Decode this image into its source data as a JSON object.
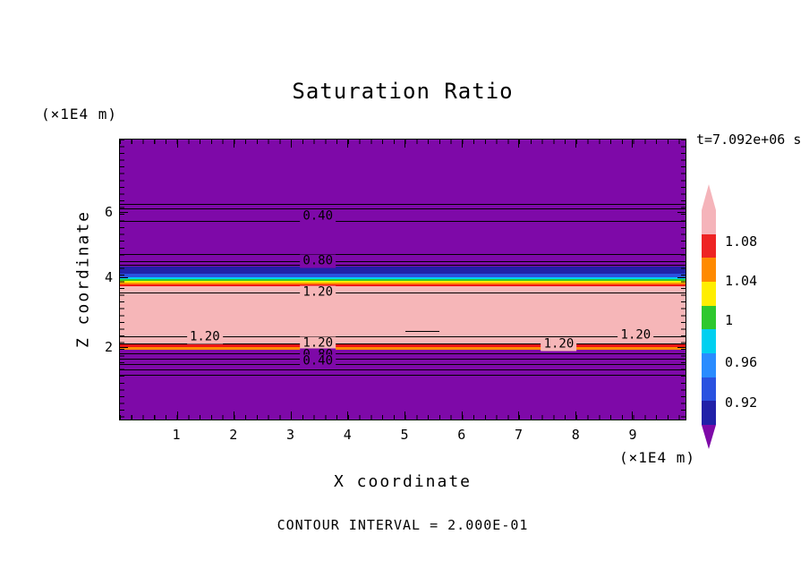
{
  "header": {
    "title": "Saturation Ratio",
    "time_label": "t=7.092e+06 s"
  },
  "axes": {
    "xlabel": "X coordinate",
    "ylabel": "Z coordinate",
    "x_unit": "(×1E4 m)",
    "y_unit": "(×1E4 m)"
  },
  "footer": {
    "contour_note": "CONTOUR INTERVAL = 2.000E-01"
  },
  "chart_data": {
    "type": "heatmap",
    "subtype": "filled-contour-plot",
    "title": "Saturation Ratio",
    "xlabel": "X coordinate",
    "ylabel": "Z coordinate",
    "x_axis_unit": "(×1E4 m)",
    "y_axis_unit": "(×1E4 m)",
    "time": "t=7.092e+06 s",
    "contour_interval": "2.000E-01",
    "x_range": [
      0,
      9.95
    ],
    "y_range": [
      -0.2,
      8.2
    ],
    "grid": false,
    "x_ticks": [
      {
        "value": "1",
        "f": 0.1009
      },
      {
        "value": "2",
        "f": 0.2015
      },
      {
        "value": "3",
        "f": 0.3021
      },
      {
        "value": "4",
        "f": 0.4026
      },
      {
        "value": "5",
        "f": 0.5032
      },
      {
        "value": "6",
        "f": 0.6037
      },
      {
        "value": "7",
        "f": 0.7043
      },
      {
        "value": "8",
        "f": 0.8048
      },
      {
        "value": "9",
        "f": 0.9054
      }
    ],
    "y_ticks": [
      {
        "value": "6",
        "f": 0.2603
      },
      {
        "value": "4",
        "f": 0.4921
      },
      {
        "value": "2",
        "f": 0.7397
      }
    ],
    "colors": {
      "purple": "#7e09a8",
      "navy": "#2121a8",
      "blue": "#2a52e0",
      "cyan": "#00d0f0",
      "green": "#2ec82e",
      "yellow": "#ffee00",
      "orange": "#ff8c00",
      "red": "#f01414",
      "pink": "#f6b6b8"
    },
    "bands": [
      {
        "top": 0.0,
        "bottom": 0.454,
        "color": "#7e09a8",
        "value": "< 0.92"
      },
      {
        "top": 0.454,
        "bottom": 0.479,
        "color": "#2121a8",
        "value": "0.92"
      },
      {
        "top": 0.479,
        "bottom": 0.492,
        "color": "#2a52e0",
        "value": "0.94"
      },
      {
        "top": 0.492,
        "bottom": 0.4985,
        "color": "#00d0f0",
        "value": "0.96"
      },
      {
        "top": 0.4985,
        "bottom": 0.505,
        "color": "#2ec82e",
        "value": "1.00"
      },
      {
        "top": 0.505,
        "bottom": 0.511,
        "color": "#ffee00",
        "value": "1.04"
      },
      {
        "top": 0.511,
        "bottom": 0.5175,
        "color": "#ff8c00",
        "value": "1.06"
      },
      {
        "top": 0.5175,
        "bottom": 0.524,
        "color": "#f01414",
        "value": "1.08"
      },
      {
        "top": 0.517,
        "bottom": 0.54,
        "color": "#f01414",
        "x0": 0.37,
        "x1": 0.47,
        "value": "1.08"
      },
      {
        "top": 0.524,
        "bottom": 0.733,
        "color": "#f6b6b8",
        "value": "> 1.08 (≈1.2)"
      },
      {
        "top": 0.733,
        "bottom": 0.742,
        "color": "#f01414",
        "value": "1.08"
      },
      {
        "top": 0.742,
        "bottom": 0.752,
        "color": "#ff8c00",
        "value": "1.04"
      },
      {
        "top": 0.752,
        "bottom": 1.0,
        "color": "#7e09a8",
        "value": "< 0.92"
      }
    ],
    "contour_lines": [
      {
        "y": 0.2286,
        "x0": 0,
        "x1": 1
      },
      {
        "y": 0.2476,
        "x0": 0,
        "x1": 1
      },
      {
        "y": 0.2921,
        "x0": 0,
        "x1": 1,
        "level": "0.40"
      },
      {
        "y": 0.4095,
        "x0": 0,
        "x1": 1
      },
      {
        "y": 0.4349,
        "x0": 0,
        "x1": 1,
        "level": "0.80"
      },
      {
        "y": 0.448,
        "x0": 0,
        "x1": 1
      },
      {
        "y": 0.546,
        "x0": 0,
        "x1": 1,
        "level": "1.20"
      },
      {
        "y": 0.6825,
        "x0": 0.505,
        "x1": 0.565
      },
      {
        "y": 0.7016,
        "x0": 0,
        "x1": 1,
        "level": "1.20"
      },
      {
        "y": 0.727,
        "x0": 0,
        "x1": 1,
        "level": "1.20"
      },
      {
        "y": 0.7651,
        "x0": 0,
        "x1": 1,
        "level": "0.80"
      },
      {
        "y": 0.7841,
        "x0": 0,
        "x1": 1
      },
      {
        "y": 0.8032,
        "x0": 0,
        "x1": 1,
        "level": "0.40"
      },
      {
        "y": 0.8222,
        "x0": 0,
        "x1": 1
      },
      {
        "y": 0.8413,
        "x0": 0,
        "x1": 1
      }
    ],
    "contour_labels": [
      {
        "text": "0.40",
        "x": 0.35,
        "y": 0.2762,
        "bg": "#7e09a8"
      },
      {
        "text": "0.80",
        "x": 0.35,
        "y": 0.4349,
        "bg": "#7e09a8"
      },
      {
        "text": "1.20",
        "x": 0.35,
        "y": 0.546,
        "bg": "#f6b6b8"
      },
      {
        "text": "1.20",
        "x": 0.15,
        "y": 0.7048,
        "bg": "#f6b6b8"
      },
      {
        "text": "1.20",
        "x": 0.35,
        "y": 0.727,
        "bg": "#f6b6b8"
      },
      {
        "text": "1.20",
        "x": 0.776,
        "y": 0.7302,
        "bg": "#f6b6b8"
      },
      {
        "text": "1.20",
        "x": 0.912,
        "y": 0.6984,
        "bg": "#f6b6b8"
      },
      {
        "text": "0.80",
        "x": 0.35,
        "y": 0.7714,
        "bg": "#7e09a8"
      },
      {
        "text": "0.40",
        "x": 0.35,
        "y": 0.7937,
        "bg": "#7e09a8"
      }
    ],
    "colorbar": {
      "values": [
        "1.08",
        "1.04",
        "1",
        "0.96",
        "0.92"
      ],
      "labels": [
        {
          "text": "1.08",
          "f": 0.146
        },
        {
          "text": "1.04",
          "f": 0.329
        },
        {
          "text": "1",
          "f": 0.512
        },
        {
          "text": "0.96",
          "f": 0.708
        },
        {
          "text": "0.92",
          "f": 0.896
        }
      ],
      "segments": [
        "#f5b4ba",
        "#ee2424",
        "#ff8a00",
        "#ffee00",
        "#2ec82e",
        "#00d0f0",
        "#2a8cff",
        "#2a52e0",
        "#2121a8"
      ],
      "top_point": "#f5b4ba",
      "bottom_point": "#7e09a8"
    }
  }
}
